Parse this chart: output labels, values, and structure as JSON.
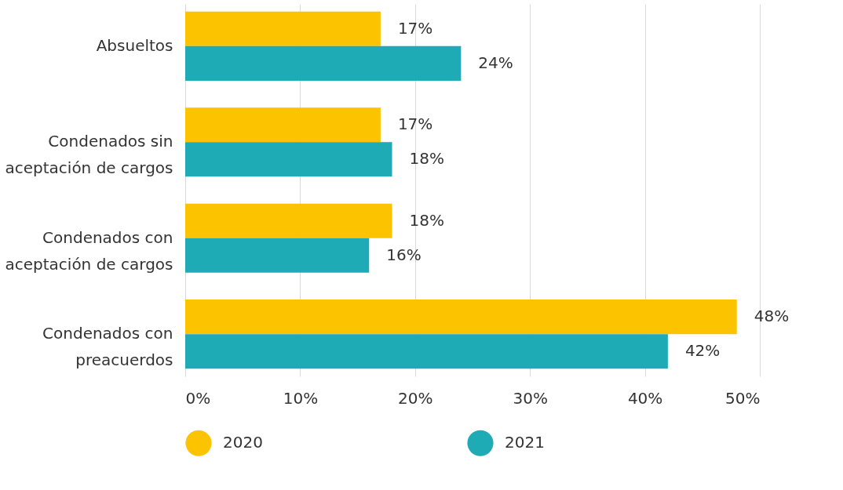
{
  "chart_data": {
    "type": "bar",
    "orientation": "horizontal",
    "categories": [
      "Absueltos",
      "Condenados sin aceptación de cargos",
      "Condenados con aceptación de cargos",
      "Condenados con preacuerdos"
    ],
    "series": [
      {
        "name": "2020",
        "color": "#fbc300",
        "values": [
          17,
          17,
          18,
          48
        ],
        "value_labels": [
          "17%",
          "17%",
          "18%",
          "48%"
        ]
      },
      {
        "name": "2021",
        "color": "#1fabb6",
        "values": [
          24,
          18,
          16,
          42
        ],
        "value_labels": [
          "24%",
          "18%",
          "16%",
          "42%"
        ]
      }
    ],
    "xlim": [
      0,
      50
    ],
    "xticks": [
      {
        "value": 0,
        "label": "0%"
      },
      {
        "value": 10,
        "label": "10%"
      },
      {
        "value": 20,
        "label": "20%"
      },
      {
        "value": 30,
        "label": "30%"
      },
      {
        "value": 40,
        "label": "40%"
      },
      {
        "value": 50,
        "label": "50%"
      }
    ],
    "grid": "x",
    "legend": "bottom"
  }
}
